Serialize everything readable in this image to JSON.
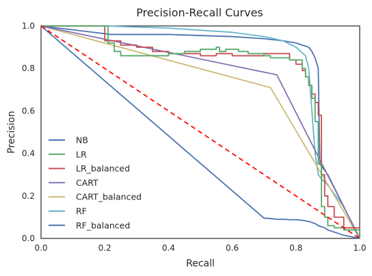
{
  "chart_data": {
    "type": "line",
    "title": "Precision-Recall Curves",
    "xlabel": "Recall",
    "ylabel": "Precision",
    "xlim": [
      0,
      1
    ],
    "ylim": [
      0,
      1
    ],
    "xticks": [
      "0.0",
      "0.2",
      "0.4",
      "0.6",
      "0.8",
      "1.0"
    ],
    "yticks": [
      "0.0",
      "0.2",
      "0.4",
      "0.6",
      "0.8",
      "1.0"
    ],
    "grid": false,
    "legend_position": "lower-left",
    "baseline": {
      "style": "dashed",
      "color": "#ff0000",
      "x": [
        0,
        1
      ],
      "y": [
        1,
        0
      ]
    },
    "series": [
      {
        "name": "NB",
        "color": "#4c72b0",
        "x": [
          0,
          0.7,
          0.71,
          0.74,
          0.76,
          0.78,
          0.8,
          0.82,
          0.84,
          0.85,
          0.86,
          0.87,
          0.88,
          0.89,
          0.9,
          0.92,
          0.95,
          1.0
        ],
        "y": [
          1,
          0.095,
          0.095,
          0.09,
          0.09,
          0.088,
          0.088,
          0.085,
          0.08,
          0.075,
          0.07,
          0.06,
          0.055,
          0.05,
          0.04,
          0.03,
          0.015,
          0
        ]
      },
      {
        "name": "LR",
        "color": "#55a868",
        "x": [
          0,
          0.2,
          0.21,
          0.21,
          0.23,
          0.23,
          0.25,
          0.25,
          0.27,
          0.3,
          0.35,
          0.4,
          0.45,
          0.5,
          0.55,
          0.56,
          0.58,
          0.62,
          0.65,
          0.7,
          0.72,
          0.75,
          0.78,
          0.8,
          0.82,
          0.83,
          0.84,
          0.85,
          0.86,
          0.87,
          0.88,
          0.89,
          0.9,
          0.92,
          0.95,
          1.0
        ],
        "y": [
          1,
          1,
          1,
          0.92,
          0.92,
          0.88,
          0.88,
          0.86,
          0.86,
          0.86,
          0.86,
          0.87,
          0.88,
          0.89,
          0.9,
          0.88,
          0.89,
          0.88,
          0.87,
          0.86,
          0.85,
          0.85,
          0.84,
          0.84,
          0.8,
          0.76,
          0.72,
          0.66,
          0.55,
          0.35,
          0.15,
          0.1,
          0.06,
          0.05,
          0.04,
          0
        ]
      },
      {
        "name": "LR_balanced",
        "color": "#c44e52",
        "x": [
          0,
          0.2,
          0.25,
          0.3,
          0.35,
          0.4,
          0.45,
          0.5,
          0.55,
          0.6,
          0.65,
          0.7,
          0.75,
          0.78,
          0.8,
          0.82,
          0.83,
          0.84,
          0.85,
          0.86,
          0.87,
          0.88,
          0.89,
          0.9,
          0.92,
          0.95,
          1.0
        ],
        "y": [
          1,
          0.93,
          0.91,
          0.9,
          0.88,
          0.87,
          0.87,
          0.86,
          0.87,
          0.86,
          0.86,
          0.87,
          0.87,
          0.84,
          0.82,
          0.79,
          0.76,
          0.72,
          0.68,
          0.64,
          0.58,
          0.3,
          0.2,
          0.15,
          0.1,
          0.05,
          0
        ]
      },
      {
        "name": "CART",
        "color": "#8172b2",
        "x": [
          0,
          0.74,
          1.0
        ],
        "y": [
          1,
          0.77,
          0
        ]
      },
      {
        "name": "CART_balanced",
        "color": "#ccb974",
        "x": [
          0,
          0.72,
          1.0
        ],
        "y": [
          1,
          0.71,
          0
        ]
      },
      {
        "name": "RF",
        "color": "#64b5cd",
        "x": [
          0,
          0.2,
          0.4,
          0.6,
          0.7,
          0.76,
          0.8,
          0.83,
          0.84,
          0.85,
          0.86,
          0.87,
          0.88,
          0.9,
          0.95,
          1.0
        ],
        "y": [
          1,
          1,
          0.99,
          0.97,
          0.95,
          0.93,
          0.9,
          0.86,
          0.8,
          0.6,
          0.4,
          0.3,
          0.28,
          0.25,
          0.15,
          0
        ]
      },
      {
        "name": "RF_balanced",
        "color": "#4c72b0",
        "x": [
          0,
          0.22,
          0.4,
          0.6,
          0.7,
          0.76,
          0.8,
          0.82,
          0.84,
          0.85,
          0.86,
          0.87,
          0.875,
          0.88,
          0.9,
          0.95,
          1.0
        ],
        "y": [
          1,
          0.96,
          0.96,
          0.95,
          0.94,
          0.93,
          0.92,
          0.91,
          0.9,
          0.88,
          0.85,
          0.8,
          0.35,
          0.34,
          0.3,
          0.15,
          0
        ]
      }
    ]
  }
}
